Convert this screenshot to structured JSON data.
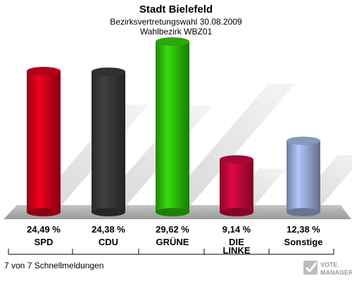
{
  "chart_data": {
    "type": "bar",
    "title": "Stadt Bielefeld",
    "subtitle_lines": [
      "Bezirksvertretungswahl 30.08.2009",
      "Wahlbezirk WBZ01"
    ],
    "categories": [
      "SPD",
      "CDU",
      "GRÜNE",
      "DIE LINKE",
      "Sonstige"
    ],
    "category_lines": [
      [
        "SPD"
      ],
      [
        "CDU"
      ],
      [
        "GRÜNE"
      ],
      [
        "DIE",
        "LINKE"
      ],
      [
        "Sonstige"
      ]
    ],
    "values": [
      24.49,
      24.38,
      29.62,
      9.14,
      12.38
    ],
    "value_labels": [
      "24,49 %",
      "24,38 %",
      "29,62 %",
      "9,14 %",
      "12,38 %"
    ],
    "colors": [
      "#d7001c",
      "#3a3a3a",
      "#2fc40a",
      "#c8083f",
      "#9fb2e0"
    ],
    "ylim": [
      0,
      32
    ],
    "grid": false,
    "legend": "none"
  },
  "footer": {
    "note": "7 von 7 Schnellmeldungen",
    "logo_line1": "VOTE",
    "logo_line2": "MANAGER"
  }
}
